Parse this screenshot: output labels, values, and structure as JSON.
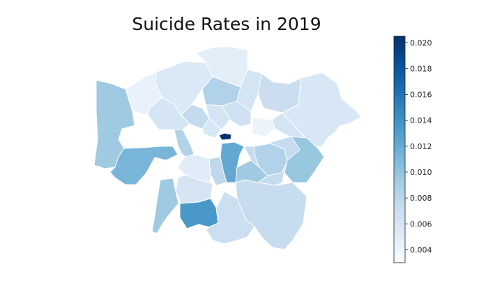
{
  "figure": {
    "title": "Suicide Rates in 2019"
  },
  "colorbar": {
    "min": 0.003,
    "max": 0.0205,
    "ticks": [
      "0.004",
      "0.006",
      "0.008",
      "0.010",
      "0.012",
      "0.014",
      "0.016",
      "0.018",
      "0.020"
    ],
    "colormap": "Blues",
    "stops": [
      "#f7fbff",
      "#deebf7",
      "#c6dbef",
      "#9ecae1",
      "#6baed6",
      "#4292c6",
      "#2171b5",
      "#08519c",
      "#08306b"
    ]
  },
  "chart_data": {
    "type": "heatmap",
    "title": "Suicide Rates in 2019",
    "value_range": [
      0.003,
      0.0205
    ],
    "regions": [
      {
        "id": "r-nw-large",
        "value": 0.0055
      },
      {
        "id": "r-nw-top",
        "value": 0.0042
      },
      {
        "id": "r-n-top",
        "value": 0.0048
      },
      {
        "id": "r-n-mid",
        "value": 0.0085
      },
      {
        "id": "r-ne-strip",
        "value": 0.0062
      },
      {
        "id": "r-ne-block",
        "value": 0.007
      },
      {
        "id": "r-e-large",
        "value": 0.0058
      },
      {
        "id": "r-e-mid",
        "value": 0.0062
      },
      {
        "id": "r-e-small",
        "value": 0.004
      },
      {
        "id": "r-c-mid",
        "value": 0.0065
      },
      {
        "id": "r-c-left",
        "value": 0.006
      },
      {
        "id": "r-c-small-1",
        "value": 0.0075
      },
      {
        "id": "r-c-small-2",
        "value": 0.0062
      },
      {
        "id": "r-c-small-3",
        "value": 0.0057
      },
      {
        "id": "r-city",
        "value": 0.0205
      },
      {
        "id": "r-w-large",
        "value": 0.0095
      },
      {
        "id": "r-w-band",
        "value": 0.0112
      },
      {
        "id": "r-w-mid",
        "value": 0.0085
      },
      {
        "id": "r-sw-centre",
        "value": 0.006
      },
      {
        "id": "r-sw-strip",
        "value": 0.0095
      },
      {
        "id": "r-s-centre",
        "value": 0.0122
      },
      {
        "id": "r-s-left",
        "value": 0.005
      },
      {
        "id": "r-s-dark",
        "value": 0.0135
      },
      {
        "id": "r-s-large",
        "value": 0.0072
      },
      {
        "id": "r-s-bottom",
        "value": 0.0068
      },
      {
        "id": "r-se-large",
        "value": 0.0074
      },
      {
        "id": "r-se-mid",
        "value": 0.0085
      },
      {
        "id": "r-se-right",
        "value": 0.0098
      },
      {
        "id": "r-c-south-1",
        "value": 0.0078
      },
      {
        "id": "r-c-south-2",
        "value": 0.0095
      }
    ]
  }
}
